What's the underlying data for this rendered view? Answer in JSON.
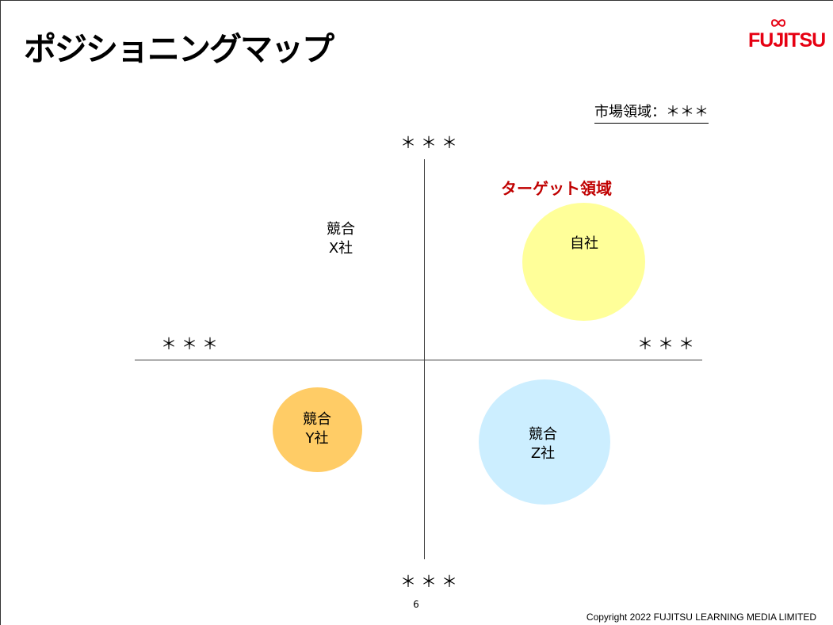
{
  "slide": {
    "title": "ポジショニングマップ",
    "logo_text": "FUJITSU",
    "market_label": "市場領域：＊＊＊",
    "page_number": "6",
    "copyright": "Copyright 2022 FUJITSU LEARNING MEDIA LIMITED"
  },
  "map": {
    "axis_top": "＊＊＊",
    "axis_bottom": "＊＊＊",
    "axis_left": "＊＊＊",
    "axis_right": "＊＊＊",
    "target_label": "ターゲット領域",
    "companies": {
      "self": {
        "line1": "自社",
        "color": "#ffff99"
      },
      "x": {
        "line1": "競合",
        "line2": "X社"
      },
      "y": {
        "line1": "競合",
        "line2": "Y社",
        "color": "#ffcc66"
      },
      "z": {
        "line1": "競合",
        "line2": "Z社",
        "color": "#cceeff"
      }
    }
  },
  "colors": {
    "brand_red": "#e60012",
    "target_red": "#c00000"
  }
}
